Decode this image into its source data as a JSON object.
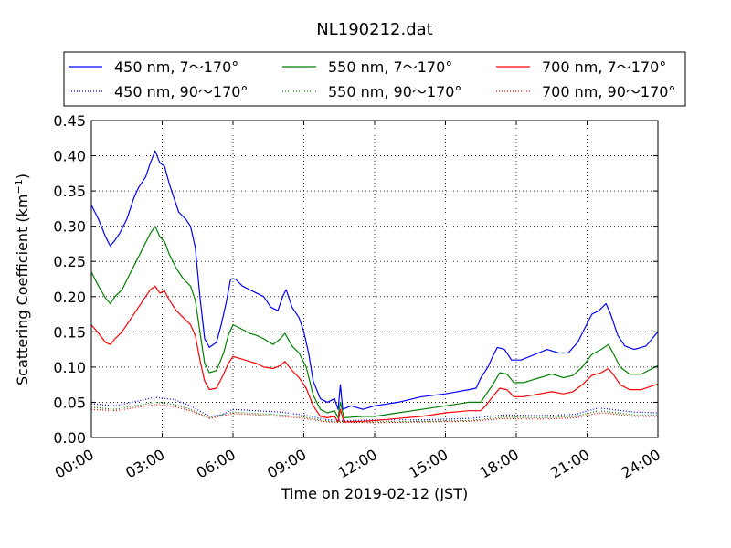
{
  "chart_data": {
    "type": "line",
    "title": "NL190212.dat",
    "xlabel": "Time on 2019-02-12 (JST)",
    "ylabel_main": "Scattering Coefficient (km",
    "ylabel_sup": "−1",
    "ylabel_close": ")",
    "xlim": [
      0,
      24
    ],
    "ylim": [
      0,
      0.45
    ],
    "grid": true,
    "legend_position": "top",
    "x_ticks": [
      0,
      3,
      6,
      9,
      12,
      15,
      18,
      21,
      24
    ],
    "x_tick_labels": [
      "00:00",
      "03:00",
      "06:00",
      "09:00",
      "12:00",
      "15:00",
      "18:00",
      "21:00",
      "24:00"
    ],
    "y_ticks": [
      0,
      0.05,
      0.1,
      0.15,
      0.2,
      0.25,
      0.3,
      0.35,
      0.4,
      0.45
    ],
    "y_tick_labels": [
      "0.00",
      "0.05",
      "0.10",
      "0.15",
      "0.20",
      "0.25",
      "0.30",
      "0.35",
      "0.40",
      "0.45"
    ],
    "series": [
      {
        "name": "450 nm, 7～170°",
        "color": "#0000ff",
        "dash": "solid",
        "points": [
          [
            0,
            0.33
          ],
          [
            0.3,
            0.31
          ],
          [
            0.6,
            0.285
          ],
          [
            0.8,
            0.272
          ],
          [
            1.0,
            0.28
          ],
          [
            1.2,
            0.29
          ],
          [
            1.5,
            0.31
          ],
          [
            1.8,
            0.34
          ],
          [
            2.0,
            0.355
          ],
          [
            2.3,
            0.37
          ],
          [
            2.5,
            0.39
          ],
          [
            2.7,
            0.407
          ],
          [
            2.9,
            0.39
          ],
          [
            3.1,
            0.385
          ],
          [
            3.3,
            0.36
          ],
          [
            3.5,
            0.34
          ],
          [
            3.7,
            0.32
          ],
          [
            4.0,
            0.31
          ],
          [
            4.2,
            0.3
          ],
          [
            4.4,
            0.27
          ],
          [
            4.6,
            0.2
          ],
          [
            4.8,
            0.14
          ],
          [
            5.0,
            0.128
          ],
          [
            5.3,
            0.135
          ],
          [
            5.5,
            0.16
          ],
          [
            5.7,
            0.19
          ],
          [
            5.9,
            0.225
          ],
          [
            6.1,
            0.225
          ],
          [
            6.4,
            0.215
          ],
          [
            6.7,
            0.21
          ],
          [
            7.0,
            0.205
          ],
          [
            7.3,
            0.2
          ],
          [
            7.6,
            0.185
          ],
          [
            7.9,
            0.18
          ],
          [
            8.1,
            0.2
          ],
          [
            8.25,
            0.21
          ],
          [
            8.5,
            0.185
          ],
          [
            8.8,
            0.17
          ],
          [
            9.0,
            0.15
          ],
          [
            9.2,
            0.12
          ],
          [
            9.4,
            0.08
          ],
          [
            9.7,
            0.055
          ],
          [
            10.0,
            0.05
          ],
          [
            10.3,
            0.055
          ],
          [
            10.45,
            0.04
          ],
          [
            10.55,
            0.075
          ],
          [
            10.65,
            0.04
          ],
          [
            11.0,
            0.045
          ],
          [
            11.5,
            0.04
          ],
          [
            12.0,
            0.045
          ],
          [
            13.0,
            0.05
          ],
          [
            14.0,
            0.058
          ],
          [
            15.0,
            0.062
          ],
          [
            16.0,
            0.068
          ],
          [
            16.3,
            0.07
          ],
          [
            16.5,
            0.085
          ],
          [
            16.8,
            0.1
          ],
          [
            17.0,
            0.115
          ],
          [
            17.2,
            0.128
          ],
          [
            17.5,
            0.125
          ],
          [
            17.8,
            0.11
          ],
          [
            18.2,
            0.11
          ],
          [
            18.8,
            0.118
          ],
          [
            19.3,
            0.125
          ],
          [
            19.8,
            0.12
          ],
          [
            20.2,
            0.12
          ],
          [
            20.6,
            0.135
          ],
          [
            20.9,
            0.155
          ],
          [
            21.2,
            0.175
          ],
          [
            21.5,
            0.18
          ],
          [
            21.8,
            0.19
          ],
          [
            22.0,
            0.175
          ],
          [
            22.3,
            0.145
          ],
          [
            22.6,
            0.13
          ],
          [
            23.0,
            0.125
          ],
          [
            23.5,
            0.13
          ],
          [
            24.0,
            0.15
          ]
        ]
      },
      {
        "name": "450 nm, 90～170°",
        "color": "#0000ff",
        "dash": "dotted",
        "points": [
          [
            0,
            0.048
          ],
          [
            1,
            0.045
          ],
          [
            2,
            0.052
          ],
          [
            2.7,
            0.057
          ],
          [
            3.5,
            0.054
          ],
          [
            4.2,
            0.045
          ],
          [
            5,
            0.03
          ],
          [
            5.5,
            0.032
          ],
          [
            6,
            0.04
          ],
          [
            7,
            0.038
          ],
          [
            8,
            0.036
          ],
          [
            9,
            0.032
          ],
          [
            10,
            0.025
          ],
          [
            11,
            0.024
          ],
          [
            12,
            0.025
          ],
          [
            14,
            0.025
          ],
          [
            16,
            0.027
          ],
          [
            17.5,
            0.032
          ],
          [
            19,
            0.031
          ],
          [
            20.5,
            0.033
          ],
          [
            21.5,
            0.042
          ],
          [
            22,
            0.04
          ],
          [
            23,
            0.036
          ],
          [
            24,
            0.035
          ]
        ]
      },
      {
        "name": "550 nm, 7～170°",
        "color": "#008000",
        "dash": "solid",
        "points": [
          [
            0,
            0.235
          ],
          [
            0.3,
            0.215
          ],
          [
            0.6,
            0.198
          ],
          [
            0.8,
            0.19
          ],
          [
            1.0,
            0.2
          ],
          [
            1.3,
            0.21
          ],
          [
            1.6,
            0.23
          ],
          [
            1.9,
            0.25
          ],
          [
            2.2,
            0.27
          ],
          [
            2.5,
            0.29
          ],
          [
            2.7,
            0.3
          ],
          [
            2.9,
            0.285
          ],
          [
            3.1,
            0.278
          ],
          [
            3.3,
            0.26
          ],
          [
            3.6,
            0.24
          ],
          [
            3.9,
            0.225
          ],
          [
            4.2,
            0.215
          ],
          [
            4.4,
            0.195
          ],
          [
            4.6,
            0.15
          ],
          [
            4.8,
            0.105
          ],
          [
            5.0,
            0.092
          ],
          [
            5.3,
            0.095
          ],
          [
            5.6,
            0.12
          ],
          [
            5.8,
            0.145
          ],
          [
            6.0,
            0.16
          ],
          [
            6.3,
            0.155
          ],
          [
            6.7,
            0.148
          ],
          [
            7.0,
            0.145
          ],
          [
            7.3,
            0.14
          ],
          [
            7.7,
            0.132
          ],
          [
            8.0,
            0.14
          ],
          [
            8.2,
            0.148
          ],
          [
            8.5,
            0.13
          ],
          [
            8.8,
            0.12
          ],
          [
            9.1,
            0.1
          ],
          [
            9.4,
            0.06
          ],
          [
            9.7,
            0.04
          ],
          [
            10.0,
            0.035
          ],
          [
            10.3,
            0.038
          ],
          [
            10.45,
            0.028
          ],
          [
            10.55,
            0.05
          ],
          [
            10.7,
            0.028
          ],
          [
            11.5,
            0.03
          ],
          [
            12,
            0.03
          ],
          [
            13,
            0.035
          ],
          [
            14,
            0.04
          ],
          [
            15,
            0.045
          ],
          [
            16,
            0.05
          ],
          [
            16.5,
            0.05
          ],
          [
            16.7,
            0.06
          ],
          [
            17,
            0.075
          ],
          [
            17.3,
            0.092
          ],
          [
            17.6,
            0.09
          ],
          [
            17.9,
            0.078
          ],
          [
            18.3,
            0.078
          ],
          [
            19,
            0.085
          ],
          [
            19.5,
            0.09
          ],
          [
            20,
            0.085
          ],
          [
            20.4,
            0.088
          ],
          [
            20.8,
            0.1
          ],
          [
            21.2,
            0.118
          ],
          [
            21.6,
            0.125
          ],
          [
            21.9,
            0.132
          ],
          [
            22.1,
            0.12
          ],
          [
            22.4,
            0.1
          ],
          [
            22.8,
            0.09
          ],
          [
            23.3,
            0.09
          ],
          [
            24,
            0.102
          ]
        ]
      },
      {
        "name": "550 nm, 90～170°",
        "color": "#008000",
        "dash": "dotted",
        "points": [
          [
            0,
            0.043
          ],
          [
            1,
            0.04
          ],
          [
            2,
            0.046
          ],
          [
            2.7,
            0.05
          ],
          [
            3.5,
            0.047
          ],
          [
            4.2,
            0.04
          ],
          [
            5,
            0.028
          ],
          [
            6,
            0.036
          ],
          [
            7,
            0.034
          ],
          [
            8,
            0.032
          ],
          [
            9,
            0.029
          ],
          [
            10,
            0.023
          ],
          [
            12,
            0.022
          ],
          [
            14,
            0.023
          ],
          [
            16,
            0.024
          ],
          [
            17.5,
            0.029
          ],
          [
            19,
            0.028
          ],
          [
            20.5,
            0.03
          ],
          [
            21.5,
            0.038
          ],
          [
            22,
            0.036
          ],
          [
            23,
            0.032
          ],
          [
            24,
            0.032
          ]
        ]
      },
      {
        "name": "700 nm, 7～170°",
        "color": "#ff0000",
        "dash": "solid",
        "points": [
          [
            0,
            0.16
          ],
          [
            0.3,
            0.148
          ],
          [
            0.6,
            0.135
          ],
          [
            0.8,
            0.132
          ],
          [
            1.0,
            0.14
          ],
          [
            1.3,
            0.15
          ],
          [
            1.6,
            0.165
          ],
          [
            1.9,
            0.18
          ],
          [
            2.2,
            0.195
          ],
          [
            2.5,
            0.21
          ],
          [
            2.7,
            0.215
          ],
          [
            2.9,
            0.205
          ],
          [
            3.1,
            0.208
          ],
          [
            3.3,
            0.195
          ],
          [
            3.6,
            0.18
          ],
          [
            3.9,
            0.17
          ],
          [
            4.2,
            0.16
          ],
          [
            4.4,
            0.145
          ],
          [
            4.6,
            0.11
          ],
          [
            4.8,
            0.08
          ],
          [
            5.0,
            0.068
          ],
          [
            5.3,
            0.07
          ],
          [
            5.6,
            0.09
          ],
          [
            5.8,
            0.105
          ],
          [
            6.0,
            0.115
          ],
          [
            6.3,
            0.112
          ],
          [
            6.7,
            0.108
          ],
          [
            7.0,
            0.105
          ],
          [
            7.3,
            0.1
          ],
          [
            7.7,
            0.098
          ],
          [
            8.0,
            0.102
          ],
          [
            8.2,
            0.108
          ],
          [
            8.5,
            0.095
          ],
          [
            8.8,
            0.085
          ],
          [
            9.1,
            0.07
          ],
          [
            9.4,
            0.045
          ],
          [
            9.7,
            0.03
          ],
          [
            10,
            0.028
          ],
          [
            10.3,
            0.03
          ],
          [
            10.45,
            0.022
          ],
          [
            10.55,
            0.04
          ],
          [
            10.7,
            0.022
          ],
          [
            11.5,
            0.023
          ],
          [
            12,
            0.024
          ],
          [
            13,
            0.027
          ],
          [
            14,
            0.03
          ],
          [
            15,
            0.035
          ],
          [
            16,
            0.038
          ],
          [
            16.5,
            0.038
          ],
          [
            16.7,
            0.045
          ],
          [
            17,
            0.058
          ],
          [
            17.3,
            0.07
          ],
          [
            17.6,
            0.068
          ],
          [
            17.9,
            0.058
          ],
          [
            18.3,
            0.058
          ],
          [
            19,
            0.062
          ],
          [
            19.5,
            0.065
          ],
          [
            20,
            0.062
          ],
          [
            20.4,
            0.065
          ],
          [
            20.8,
            0.075
          ],
          [
            21.2,
            0.088
          ],
          [
            21.6,
            0.092
          ],
          [
            21.9,
            0.098
          ],
          [
            22.1,
            0.09
          ],
          [
            22.4,
            0.075
          ],
          [
            22.8,
            0.068
          ],
          [
            23.3,
            0.068
          ],
          [
            24,
            0.076
          ]
        ]
      },
      {
        "name": "700 nm, 90～170°",
        "color": "#ff0000",
        "dash": "dotted",
        "points": [
          [
            0,
            0.04
          ],
          [
            1,
            0.038
          ],
          [
            2,
            0.043
          ],
          [
            2.7,
            0.047
          ],
          [
            3.5,
            0.044
          ],
          [
            4.2,
            0.038
          ],
          [
            5,
            0.027
          ],
          [
            6,
            0.034
          ],
          [
            7,
            0.032
          ],
          [
            8,
            0.03
          ],
          [
            9,
            0.027
          ],
          [
            10,
            0.022
          ],
          [
            12,
            0.021
          ],
          [
            14,
            0.022
          ],
          [
            16,
            0.023
          ],
          [
            17.5,
            0.027
          ],
          [
            19,
            0.026
          ],
          [
            20.5,
            0.028
          ],
          [
            21.5,
            0.035
          ],
          [
            22,
            0.034
          ],
          [
            23,
            0.03
          ],
          [
            24,
            0.03
          ]
        ]
      }
    ]
  }
}
